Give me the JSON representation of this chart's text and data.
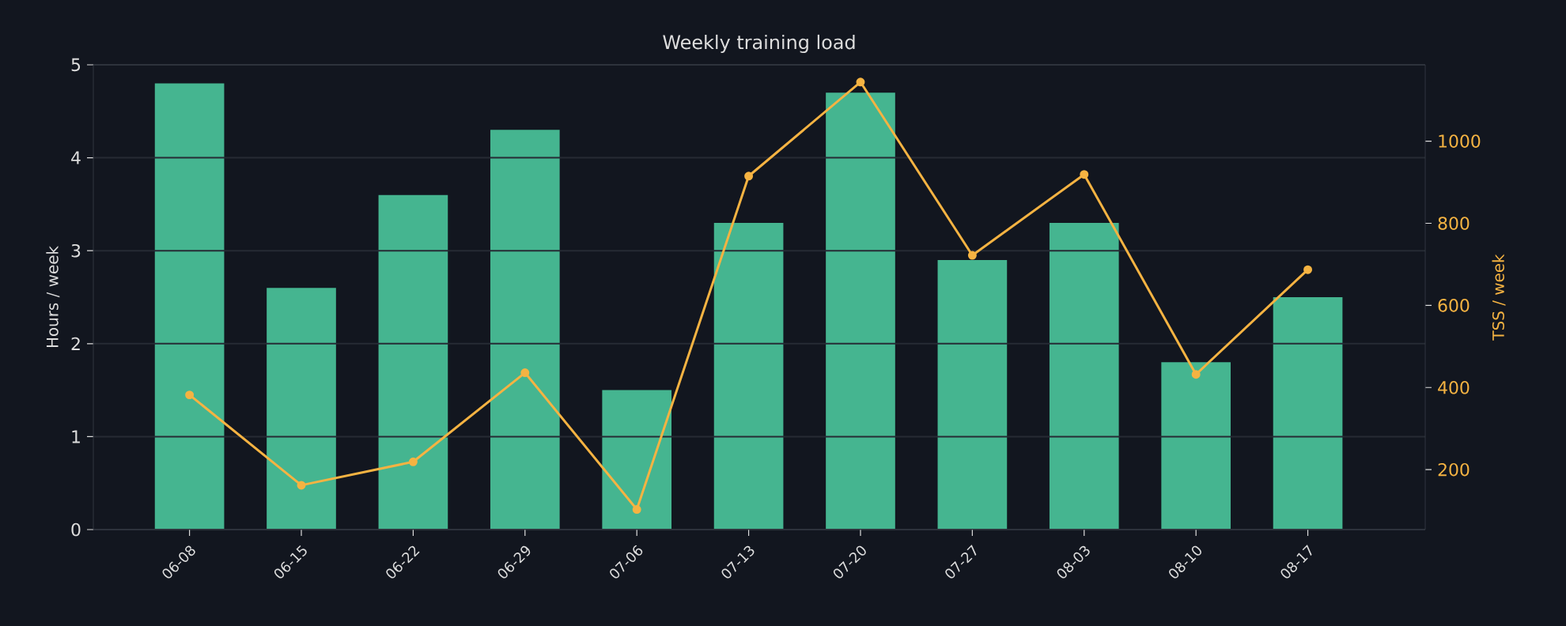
{
  "chart_data": {
    "type": "bar",
    "title": "Weekly training load",
    "ylabel": "Hours / week",
    "y2label": "TSS / week",
    "categories": [
      "06-08",
      "06-15",
      "06-22",
      "06-29",
      "07-06",
      "07-13",
      "07-20",
      "07-27",
      "08-03",
      "08-10",
      "08-17"
    ],
    "series": [
      {
        "color": "#45b590",
        "values": [
          4.8,
          2.6,
          3.6,
          4.3,
          1.5,
          3.3,
          4.7,
          2.9,
          3.3,
          1.8,
          2.5
        ]
      },
      {
        "type": "line",
        "axis": "y2",
        "color": "#f5b342",
        "values": [
          382,
          162,
          219,
          436,
          103,
          915,
          1144,
          722,
          919,
          432,
          687
        ]
      }
    ],
    "ylim": [
      0,
      5
    ],
    "yticks": [
      0,
      1,
      2,
      3,
      4,
      5
    ],
    "y2lim": [
      54,
      1186
    ],
    "y2ticks": [
      200,
      400,
      600,
      800,
      1000
    ],
    "grid": "y",
    "marker": "circle",
    "line_style": "solid"
  }
}
